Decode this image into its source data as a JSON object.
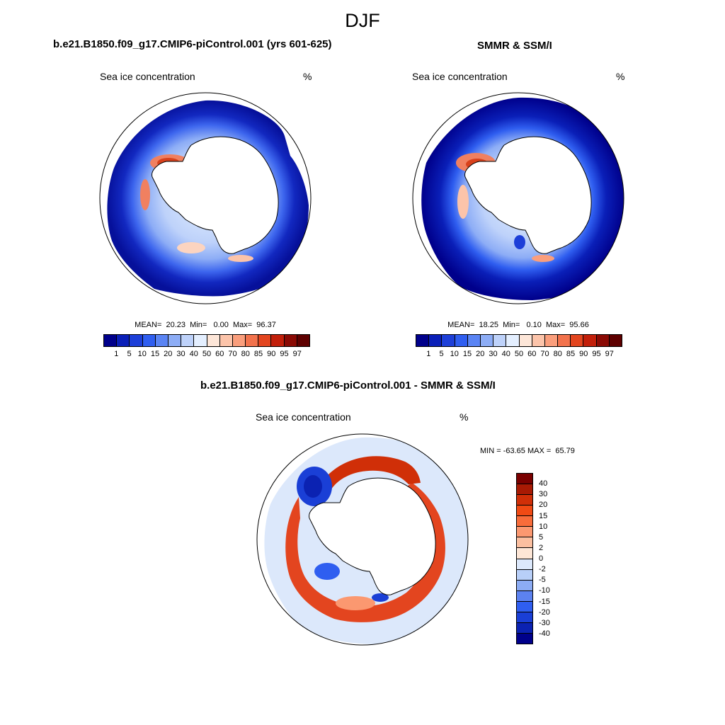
{
  "figure": {
    "title": "DJF"
  },
  "panels": [
    {
      "id": "model",
      "title": "b.e21.B1850.f09_g17.CMIP6-piControl.001 (yrs 601-625)",
      "variable": "Sea ice concentration",
      "units": "%",
      "stats": "MEAN=  20.23  Min=   0.00  Max=  96.37",
      "colorbar": {
        "ticks": [
          "1",
          "5",
          "10",
          "15",
          "20",
          "30",
          "40",
          "50",
          "60",
          "70",
          "80",
          "85",
          "90",
          "95",
          "97"
        ],
        "colors": [
          "#00008b",
          "#0a1fb8",
          "#1d3fd8",
          "#2f5ef0",
          "#5a84f4",
          "#8dadf6",
          "#bed2fa",
          "#e4efff",
          "#fde6d8",
          "#fcc4aa",
          "#fa9e7c",
          "#f2724c",
          "#e3451f",
          "#c21f0a",
          "#8a0a04",
          "#5e0000"
        ]
      }
    },
    {
      "id": "obs",
      "title": "SMMR & SSM/I",
      "variable": "Sea ice concentration",
      "units": "%",
      "stats": "MEAN=  18.25  Min=   0.10  Max=  95.66",
      "colorbar": {
        "ticks": [
          "1",
          "5",
          "10",
          "15",
          "20",
          "30",
          "40",
          "50",
          "60",
          "70",
          "80",
          "85",
          "90",
          "95",
          "97"
        ],
        "colors": [
          "#00008b",
          "#0a1fb8",
          "#1d3fd8",
          "#2f5ef0",
          "#5a84f4",
          "#8dadf6",
          "#bed2fa",
          "#e4efff",
          "#fde6d8",
          "#fcc4aa",
          "#fa9e7c",
          "#f2724c",
          "#e3451f",
          "#c21f0a",
          "#8a0a04",
          "#5e0000"
        ]
      }
    },
    {
      "id": "diff",
      "title": "b.e21.B1850.f09_g17.CMIP6-piControl.001 - SMMR & SSM/I",
      "variable": "Sea ice concentration",
      "units": "%",
      "stats": "MIN = -63.65 MAX =  65.79",
      "colorbar": {
        "ticks": [
          "40",
          "30",
          "20",
          "15",
          "10",
          "5",
          "2",
          "0",
          "-2",
          "-5",
          "-10",
          "-15",
          "-20",
          "-30",
          "-40"
        ],
        "colors": [
          "#7a0000",
          "#a81a04",
          "#d02f08",
          "#f04a14",
          "#f86c3a",
          "#fb9870",
          "#fbbfa0",
          "#fde6d6",
          "#dce8fb",
          "#b8cff8",
          "#8cacf4",
          "#5c82f0",
          "#2f5ef0",
          "#1a3fd6",
          "#0b22b2",
          "#00008b"
        ]
      }
    }
  ],
  "colors": {
    "land": "#ffffff",
    "outline": "#000000"
  }
}
